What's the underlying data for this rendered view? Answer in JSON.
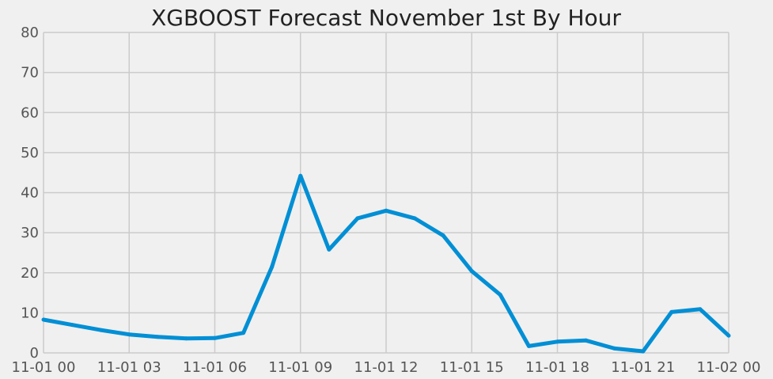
{
  "chart_data": {
    "type": "line",
    "title": "XGBOOST Forecast November 1st By Hour",
    "xlabel": "",
    "ylabel": "",
    "ylim": [
      0,
      80
    ],
    "xlim": [
      "11-01 00",
      "11-02 00"
    ],
    "grid": true,
    "legend": "none",
    "y_ticks": [
      "0",
      "10",
      "20",
      "30",
      "40",
      "50",
      "60",
      "70",
      "80"
    ],
    "x_ticks": [
      "11-01 00",
      "11-01 03",
      "11-01 06",
      "11-01 09",
      "11-01 12",
      "11-01 15",
      "11-01 18",
      "11-01 21",
      "11-02 00"
    ],
    "x": [
      "11-01 00",
      "11-01 01",
      "11-01 02",
      "11-01 03",
      "11-01 04",
      "11-01 05",
      "11-01 06",
      "11-01 07",
      "11-01 08",
      "11-01 09",
      "11-01 10",
      "11-01 11",
      "11-01 12",
      "11-01 13",
      "11-01 14",
      "11-01 15",
      "11-01 16",
      "11-01 17",
      "11-01 18",
      "11-01 19",
      "11-01 20",
      "11-01 21",
      "11-01 22",
      "11-01 23",
      "11-02 00"
    ],
    "series": [
      {
        "color": "#008fd5",
        "values": [
          8.3,
          7.0,
          5.7,
          4.6,
          4.0,
          3.6,
          3.7,
          5.0,
          21.5,
          44.2,
          25.8,
          33.6,
          35.5,
          33.6,
          29.3,
          20.4,
          14.5,
          1.7,
          2.8,
          3.1,
          1.1,
          0.4,
          10.2,
          10.9,
          4.3
        ]
      }
    ]
  }
}
